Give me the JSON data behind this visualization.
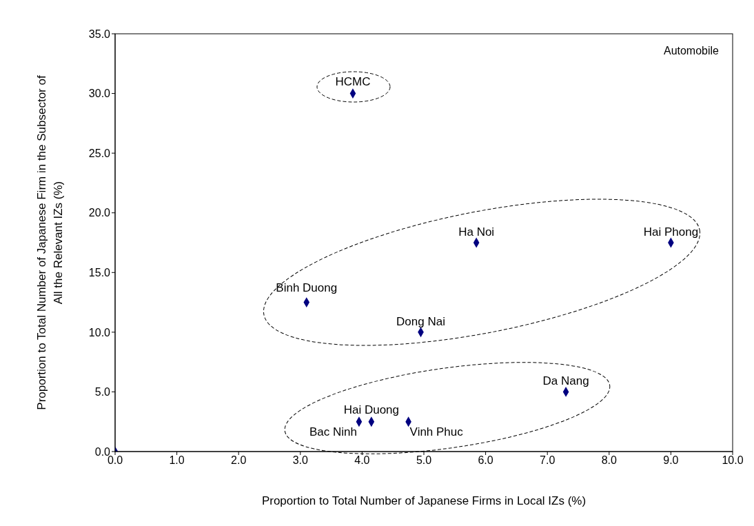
{
  "chart_data": {
    "type": "scatter",
    "xlabel": "Proportion to Total Number of Japanese Firms in Local IZs (%)",
    "ylabel": "Proportion to Total Number of Japanese Firm in the Subsector of All the Relevant IZs (%)",
    "x": [
      0,
      3.85,
      5.85,
      9.0,
      3.1,
      4.95,
      7.3,
      3.95,
      4.15,
      4.75
    ],
    "series": [
      {
        "color": "#000080",
        "values": [
          0,
          30.0,
          17.5,
          17.5,
          12.5,
          10.0,
          5.0,
          2.5,
          2.5,
          2.5
        ]
      }
    ],
    "marker": "diamond",
    "grid": false,
    "legend": false,
    "xlim": [
      0,
      10
    ],
    "ylim": [
      0,
      35
    ],
    "xticks": [
      {
        "value": 0,
        "label": "0.0"
      },
      {
        "value": 1,
        "label": "1.0"
      },
      {
        "value": 2,
        "label": "2.0"
      },
      {
        "value": 3,
        "label": "3.0"
      },
      {
        "value": 4,
        "label": "4.0"
      },
      {
        "value": 5,
        "label": "5.0"
      },
      {
        "value": 6,
        "label": "6.0"
      },
      {
        "value": 7,
        "label": "7.0"
      },
      {
        "value": 8,
        "label": "8.0"
      },
      {
        "value": 9,
        "label": "9.0"
      },
      {
        "value": 10,
        "label": "10.0"
      }
    ],
    "yticks": [
      {
        "value": 0,
        "label": "0.0"
      },
      {
        "value": 5,
        "label": "5.0"
      },
      {
        "value": 10,
        "label": "10.0"
      },
      {
        "value": 15,
        "label": "15.0"
      },
      {
        "value": 20,
        "label": "20.0"
      },
      {
        "value": 25,
        "label": "25.0"
      },
      {
        "value": 30,
        "label": "30.0"
      },
      {
        "value": 35,
        "label": "35.0"
      }
    ],
    "annotations": [
      "Automobile",
      {
        "text": "HCMC",
        "x": 3.85,
        "y": 30.0
      },
      {
        "text": "Ha Noi",
        "x": 5.85,
        "y": 17.5
      },
      {
        "text": "Hai Phong",
        "x": 9.0,
        "y": 17.5
      },
      {
        "text": "Binh Duong",
        "x": 3.1,
        "y": 12.5
      },
      {
        "text": "Dong Nai",
        "x": 4.95,
        "y": 10.0
      },
      {
        "text": "Da Nang",
        "x": 7.3,
        "y": 5.0
      },
      {
        "text": "Bac Ninh",
        "x": 3.95,
        "y": 2.5
      },
      {
        "text": "Hai Duong",
        "x": 4.15,
        "y": 2.5
      },
      {
        "text": "Vinh Phuc",
        "x": 4.75,
        "y": 2.5
      }
    ]
  }
}
